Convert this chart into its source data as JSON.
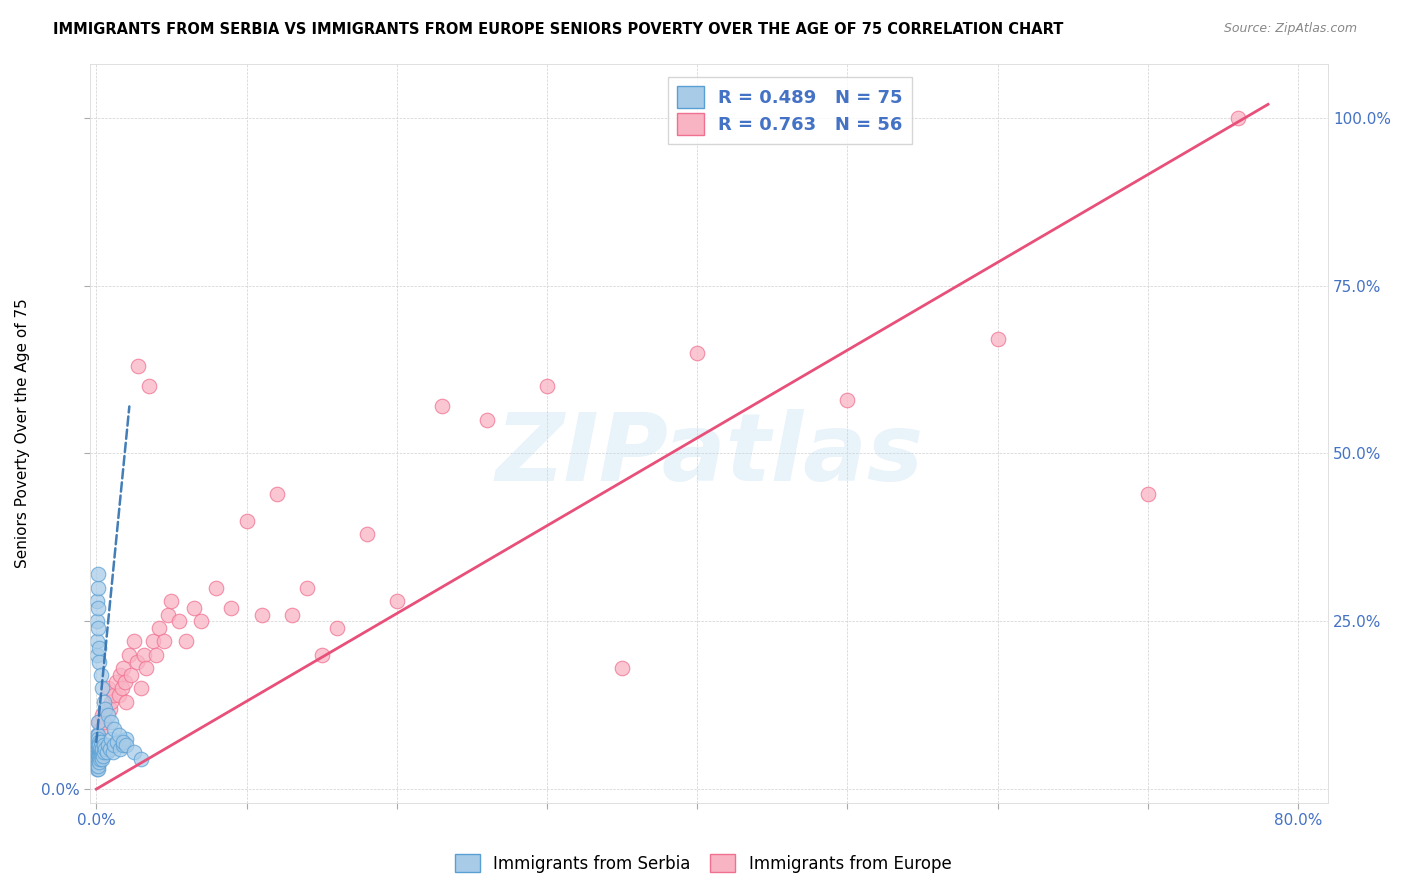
{
  "title": "IMMIGRANTS FROM SERBIA VS IMMIGRANTS FROM EUROPE SENIORS POVERTY OVER THE AGE OF 75 CORRELATION CHART",
  "source": "Source: ZipAtlas.com",
  "ylabel": "Seniors Poverty Over the Age of 75",
  "xlim_min": -0.004,
  "xlim_max": 0.82,
  "ylim_min": -0.02,
  "ylim_max": 1.08,
  "x_tick_positions": [
    0.0,
    0.1,
    0.2,
    0.3,
    0.4,
    0.5,
    0.6,
    0.7,
    0.8
  ],
  "x_tick_labels": [
    "0.0%",
    "",
    "",
    "",
    "",
    "",
    "",
    "",
    "80.0%"
  ],
  "y_tick_positions": [
    0.0,
    0.25,
    0.5,
    0.75,
    1.0
  ],
  "y_tick_labels_left": [
    "0.0%",
    "",
    "",
    "",
    ""
  ],
  "y_tick_labels_right": [
    "",
    "25.0%",
    "50.0%",
    "75.0%",
    "100.0%"
  ],
  "serbia_color": "#a8cce8",
  "europe_color": "#f9b4c4",
  "serbia_edge_color": "#5a9fd4",
  "europe_edge_color": "#f07090",
  "serbia_line_color": "#3070b0",
  "europe_line_color": "#e8507a",
  "serbia_R": 0.489,
  "serbia_N": 75,
  "europe_R": 0.763,
  "europe_N": 56,
  "watermark_text": "ZIPatlas",
  "serbia_x": [
    0.0005,
    0.0005,
    0.0005,
    0.0005,
    0.0005,
    0.0005,
    0.0007,
    0.0007,
    0.0007,
    0.0007,
    0.0008,
    0.0008,
    0.0008,
    0.001,
    0.001,
    0.001,
    0.001,
    0.001,
    0.001,
    0.0012,
    0.0012,
    0.0013,
    0.0014,
    0.0015,
    0.0015,
    0.0016,
    0.0017,
    0.0018,
    0.002,
    0.002,
    0.0022,
    0.0023,
    0.0025,
    0.003,
    0.003,
    0.0032,
    0.0035,
    0.004,
    0.004,
    0.0045,
    0.005,
    0.005,
    0.006,
    0.007,
    0.008,
    0.009,
    0.01,
    0.011,
    0.012,
    0.014,
    0.016,
    0.018,
    0.02,
    0.0005,
    0.0006,
    0.0007,
    0.0008,
    0.0009,
    0.001,
    0.0012,
    0.0014,
    0.0016,
    0.002,
    0.003,
    0.004,
    0.005,
    0.006,
    0.008,
    0.01,
    0.012,
    0.015,
    0.018,
    0.02,
    0.025,
    0.03
  ],
  "serbia_y": [
    0.03,
    0.04,
    0.05,
    0.06,
    0.07,
    0.08,
    0.035,
    0.045,
    0.055,
    0.065,
    0.04,
    0.055,
    0.07,
    0.03,
    0.045,
    0.055,
    0.065,
    0.08,
    0.1,
    0.035,
    0.06,
    0.075,
    0.045,
    0.05,
    0.07,
    0.055,
    0.06,
    0.04,
    0.05,
    0.065,
    0.055,
    0.045,
    0.06,
    0.055,
    0.07,
    0.05,
    0.045,
    0.055,
    0.06,
    0.05,
    0.055,
    0.065,
    0.06,
    0.055,
    0.065,
    0.06,
    0.075,
    0.055,
    0.065,
    0.07,
    0.06,
    0.065,
    0.075,
    0.2,
    0.22,
    0.25,
    0.28,
    0.3,
    0.32,
    0.27,
    0.24,
    0.21,
    0.19,
    0.17,
    0.15,
    0.13,
    0.12,
    0.11,
    0.1,
    0.09,
    0.08,
    0.07,
    0.065,
    0.055,
    0.045
  ],
  "europe_x": [
    0.001,
    0.002,
    0.003,
    0.004,
    0.005,
    0.006,
    0.008,
    0.009,
    0.01,
    0.012,
    0.013,
    0.015,
    0.016,
    0.017,
    0.018,
    0.019,
    0.02,
    0.022,
    0.023,
    0.025,
    0.027,
    0.028,
    0.03,
    0.032,
    0.033,
    0.035,
    0.038,
    0.04,
    0.042,
    0.045,
    0.048,
    0.05,
    0.055,
    0.06,
    0.065,
    0.07,
    0.08,
    0.09,
    0.1,
    0.11,
    0.12,
    0.13,
    0.14,
    0.15,
    0.16,
    0.18,
    0.2,
    0.23,
    0.26,
    0.3,
    0.35,
    0.4,
    0.5,
    0.6,
    0.7,
    0.76
  ],
  "europe_y": [
    0.08,
    0.1,
    0.09,
    0.11,
    0.1,
    0.12,
    0.15,
    0.12,
    0.13,
    0.14,
    0.16,
    0.14,
    0.17,
    0.15,
    0.18,
    0.16,
    0.13,
    0.2,
    0.17,
    0.22,
    0.19,
    0.63,
    0.15,
    0.2,
    0.18,
    0.6,
    0.22,
    0.2,
    0.24,
    0.22,
    0.26,
    0.28,
    0.25,
    0.22,
    0.27,
    0.25,
    0.3,
    0.27,
    0.4,
    0.26,
    0.44,
    0.26,
    0.3,
    0.2,
    0.24,
    0.38,
    0.28,
    0.57,
    0.55,
    0.6,
    0.18,
    0.65,
    0.58,
    0.67,
    0.44,
    1.0
  ],
  "serbia_line_x": [
    0.0,
    0.022
  ],
  "serbia_line_y": [
    0.07,
    0.57
  ],
  "europe_line_x": [
    0.0,
    0.78
  ],
  "europe_line_y": [
    0.0,
    1.02
  ]
}
